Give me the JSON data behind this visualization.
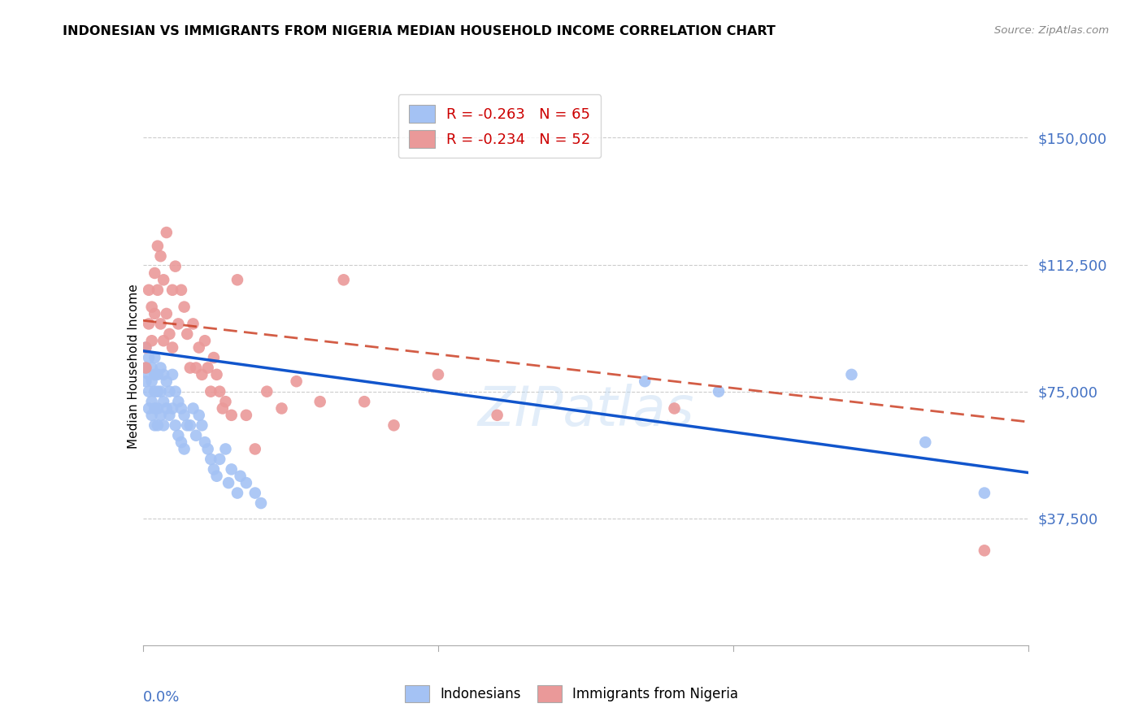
{
  "title": "INDONESIAN VS IMMIGRANTS FROM NIGERIA MEDIAN HOUSEHOLD INCOME CORRELATION CHART",
  "source": "Source: ZipAtlas.com",
  "ylabel": "Median Household Income",
  "xmin": 0.0,
  "xmax": 0.3,
  "ymin": 0,
  "ymax": 165000,
  "blue_color": "#a4c2f4",
  "pink_color": "#ea9999",
  "blue_line_color": "#1155cc",
  "pink_line_color": "#cc4125",
  "axis_label_color": "#4472c4",
  "grid_color": "#cccccc",
  "legend_R1": "-0.263",
  "legend_N1": "65",
  "legend_R2": "-0.234",
  "legend_N2": "52",
  "watermark": "ZIPatlas",
  "blue_intercept": 87000,
  "blue_slope": -120000,
  "pink_intercept": 96000,
  "pink_slope": -100000,
  "indonesians_x": [
    0.001,
    0.001,
    0.001,
    0.002,
    0.002,
    0.002,
    0.002,
    0.003,
    0.003,
    0.003,
    0.003,
    0.004,
    0.004,
    0.004,
    0.004,
    0.004,
    0.005,
    0.005,
    0.005,
    0.005,
    0.006,
    0.006,
    0.006,
    0.007,
    0.007,
    0.007,
    0.008,
    0.008,
    0.009,
    0.009,
    0.01,
    0.01,
    0.011,
    0.011,
    0.012,
    0.012,
    0.013,
    0.013,
    0.014,
    0.014,
    0.015,
    0.016,
    0.017,
    0.018,
    0.019,
    0.02,
    0.021,
    0.022,
    0.023,
    0.024,
    0.025,
    0.026,
    0.028,
    0.029,
    0.03,
    0.032,
    0.033,
    0.035,
    0.038,
    0.04,
    0.17,
    0.195,
    0.24,
    0.265,
    0.285
  ],
  "indonesians_y": [
    88000,
    82000,
    78000,
    85000,
    80000,
    75000,
    70000,
    82000,
    78000,
    72000,
    68000,
    85000,
    80000,
    75000,
    70000,
    65000,
    80000,
    75000,
    70000,
    65000,
    82000,
    75000,
    68000,
    80000,
    72000,
    65000,
    78000,
    70000,
    75000,
    68000,
    80000,
    70000,
    75000,
    65000,
    72000,
    62000,
    70000,
    60000,
    68000,
    58000,
    65000,
    65000,
    70000,
    62000,
    68000,
    65000,
    60000,
    58000,
    55000,
    52000,
    50000,
    55000,
    58000,
    48000,
    52000,
    45000,
    50000,
    48000,
    45000,
    42000,
    78000,
    75000,
    80000,
    60000,
    45000
  ],
  "nigeria_x": [
    0.001,
    0.001,
    0.002,
    0.002,
    0.003,
    0.003,
    0.004,
    0.004,
    0.005,
    0.005,
    0.006,
    0.006,
    0.007,
    0.007,
    0.008,
    0.008,
    0.009,
    0.01,
    0.01,
    0.011,
    0.012,
    0.013,
    0.014,
    0.015,
    0.016,
    0.017,
    0.018,
    0.019,
    0.02,
    0.021,
    0.022,
    0.023,
    0.024,
    0.025,
    0.026,
    0.027,
    0.028,
    0.03,
    0.032,
    0.035,
    0.038,
    0.042,
    0.047,
    0.052,
    0.06,
    0.068,
    0.075,
    0.085,
    0.1,
    0.12,
    0.18,
    0.285
  ],
  "nigeria_y": [
    88000,
    82000,
    105000,
    95000,
    100000,
    90000,
    110000,
    98000,
    105000,
    118000,
    115000,
    95000,
    108000,
    90000,
    122000,
    98000,
    92000,
    105000,
    88000,
    112000,
    95000,
    105000,
    100000,
    92000,
    82000,
    95000,
    82000,
    88000,
    80000,
    90000,
    82000,
    75000,
    85000,
    80000,
    75000,
    70000,
    72000,
    68000,
    108000,
    68000,
    58000,
    75000,
    70000,
    78000,
    72000,
    108000,
    72000,
    65000,
    80000,
    68000,
    70000,
    28000
  ]
}
